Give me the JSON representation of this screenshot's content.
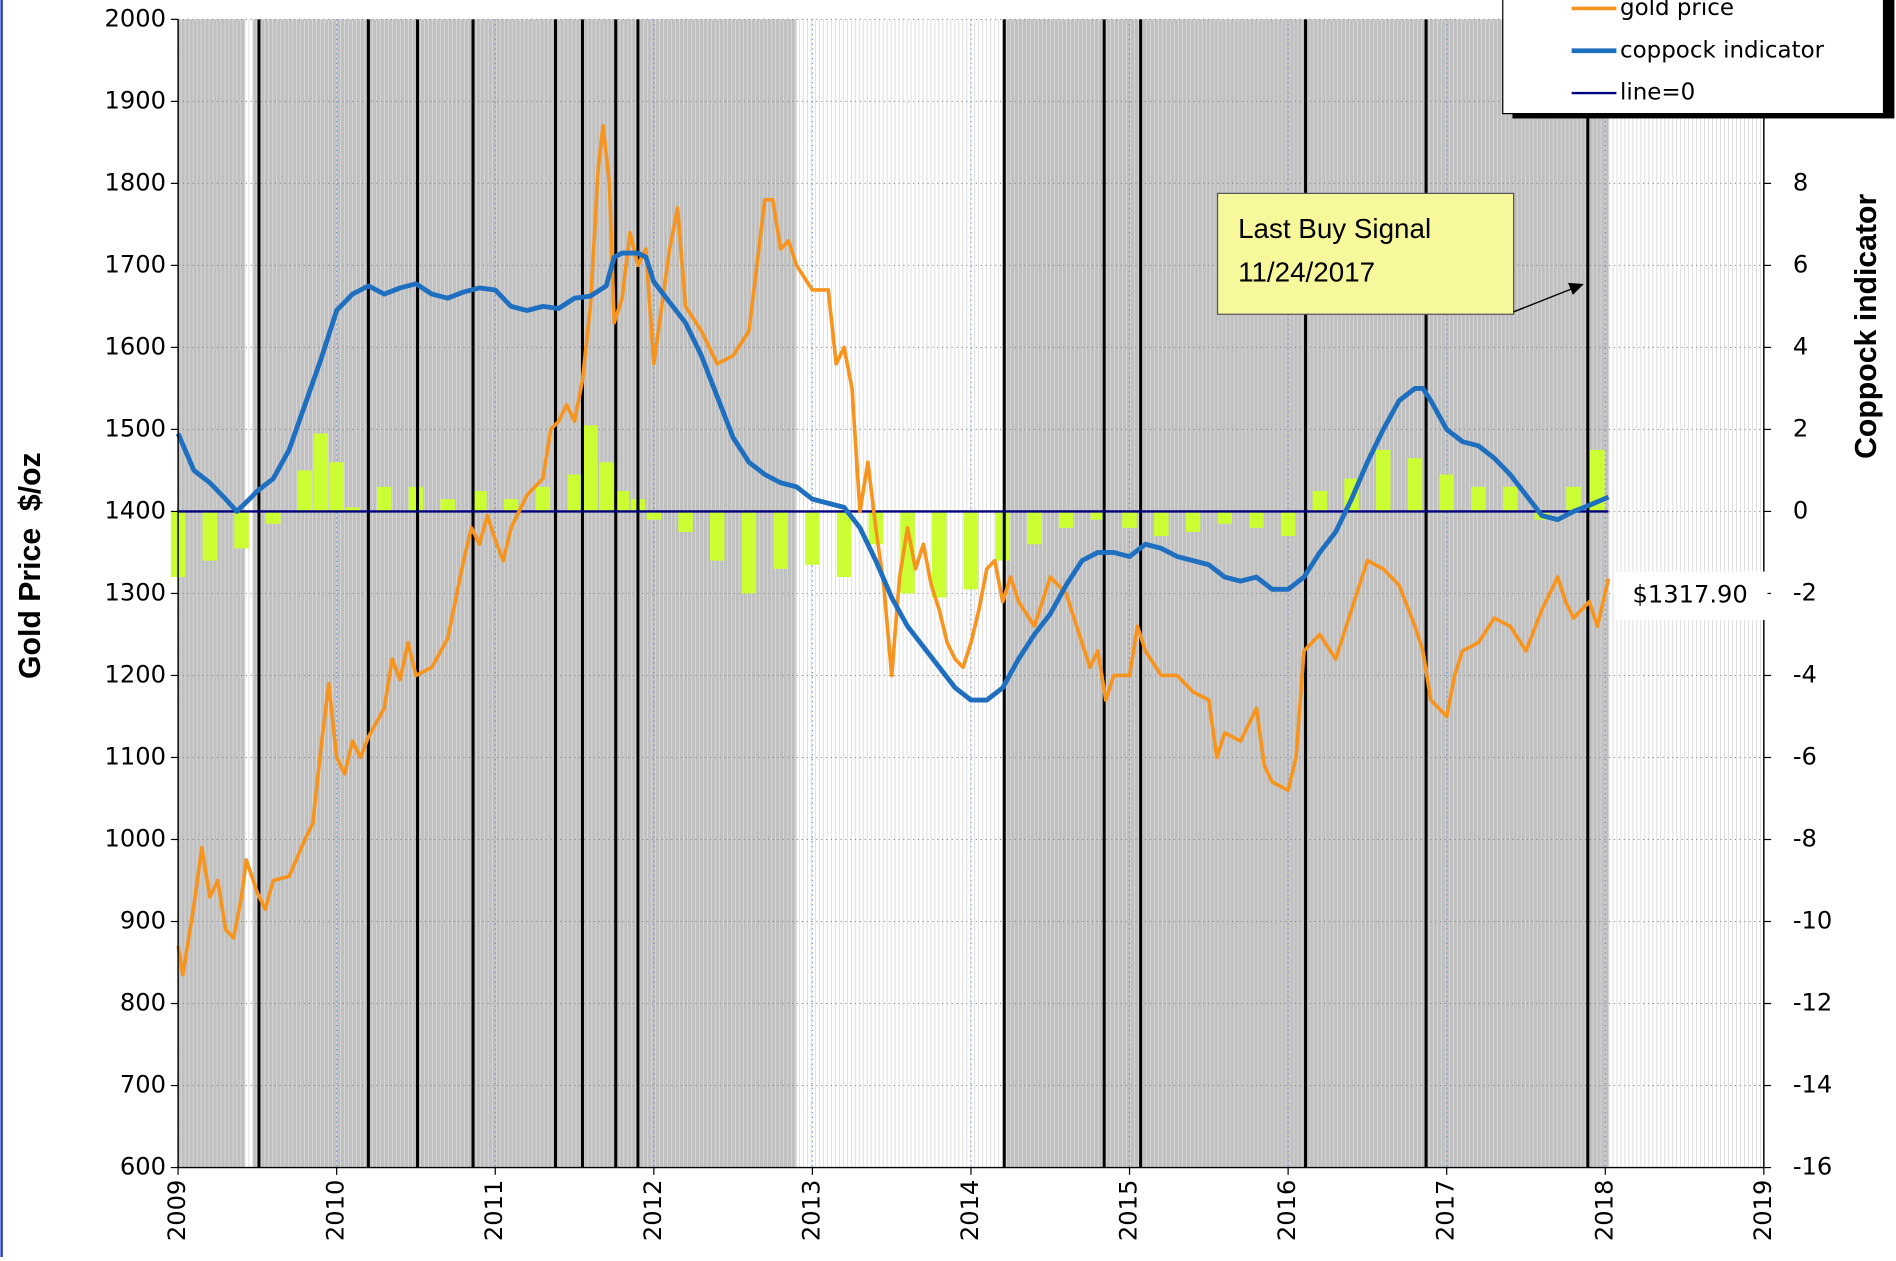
{
  "chart_data": {
    "type": "line",
    "y_title": "Gold Price  $/oz",
    "y2_title": "Coppock indicator",
    "xlim": [
      2009,
      2019
    ],
    "xticks": [
      2009,
      2010,
      2011,
      2012,
      2013,
      2014,
      2015,
      2016,
      2017,
      2018,
      2019
    ],
    "ylim": [
      600,
      2000
    ],
    "yticks": [
      600,
      700,
      800,
      900,
      1000,
      1100,
      1200,
      1300,
      1400,
      1500,
      1600,
      1700,
      1800,
      1900,
      2000
    ],
    "y2lim": [
      -16,
      12
    ],
    "y2ticks": [
      -16,
      -14,
      -12,
      -10,
      -8,
      -6,
      -4,
      -2,
      0,
      2,
      4,
      6,
      8
    ],
    "grid": true,
    "shade_color": "#c0c0c0",
    "shaded_periods": [
      [
        2009.0,
        2009.42
      ],
      [
        2009.47,
        2012.9
      ],
      [
        2014.22,
        2018.02
      ]
    ],
    "signal_lines": [
      2009.51,
      2010.2,
      2010.51,
      2010.86,
      2011.38,
      2011.55,
      2011.76,
      2011.9,
      2014.21,
      2014.84,
      2015.07,
      2016.11,
      2016.87,
      2017.89
    ],
    "signal_color": "#000000",
    "histogram": {
      "color": "#ccff33",
      "axis": "y2",
      "x": [
        2009.0,
        2009.2,
        2009.4,
        2009.6,
        2009.8,
        2009.9,
        2010.0,
        2010.1,
        2010.3,
        2010.5,
        2010.7,
        2010.9,
        2011.1,
        2011.3,
        2011.5,
        2011.6,
        2011.7,
        2011.8,
        2011.9,
        2012.0,
        2012.2,
        2012.4,
        2012.6,
        2012.8,
        2013.0,
        2013.2,
        2013.4,
        2013.6,
        2013.8,
        2014.0,
        2014.2,
        2014.4,
        2014.6,
        2014.8,
        2015.0,
        2015.2,
        2015.4,
        2015.6,
        2015.8,
        2016.0,
        2016.2,
        2016.4,
        2016.6,
        2016.8,
        2017.0,
        2017.2,
        2017.4,
        2017.6,
        2017.8,
        2017.95
      ],
      "values": [
        -1.6,
        -1.2,
        -0.9,
        -0.3,
        1.0,
        1.9,
        1.2,
        0.1,
        0.6,
        0.6,
        0.3,
        0.5,
        0.3,
        0.6,
        0.9,
        2.1,
        1.2,
        0.5,
        0.3,
        -0.2,
        -0.5,
        -1.2,
        -2.0,
        -1.4,
        -1.3,
        -1.6,
        -0.8,
        -2.0,
        -2.1,
        -1.9,
        -1.2,
        -0.8,
        -0.4,
        -0.2,
        -0.4,
        -0.6,
        -0.5,
        -0.3,
        -0.4,
        -0.6,
        0.5,
        0.8,
        1.5,
        1.3,
        0.9,
        0.6,
        0.6,
        -0.2,
        0.6,
        1.5
      ]
    },
    "series": [
      {
        "name": "gold price",
        "color": "#f7941d",
        "axis": "y",
        "x": [
          2009.0,
          2009.03,
          2009.1,
          2009.15,
          2009.2,
          2009.25,
          2009.3,
          2009.35,
          2009.4,
          2009.43,
          2009.5,
          2009.55,
          2009.6,
          2009.7,
          2009.8,
          2009.85,
          2009.9,
          2009.95,
          2010.0,
          2010.05,
          2010.1,
          2010.15,
          2010.2,
          2010.3,
          2010.35,
          2010.4,
          2010.45,
          2010.5,
          2010.6,
          2010.7,
          2010.8,
          2010.85,
          2010.9,
          2010.95,
          2011.0,
          2011.05,
          2011.1,
          2011.2,
          2011.3,
          2011.35,
          2011.4,
          2011.45,
          2011.5,
          2011.55,
          2011.6,
          2011.65,
          2011.68,
          2011.72,
          2011.75,
          2011.8,
          2011.85,
          2011.9,
          2011.95,
          2012.0,
          2012.05,
          2012.1,
          2012.15,
          2012.2,
          2012.3,
          2012.4,
          2012.5,
          2012.6,
          2012.7,
          2012.75,
          2012.8,
          2012.85,
          2012.9,
          2013.0,
          2013.1,
          2013.15,
          2013.2,
          2013.25,
          2013.3,
          2013.35,
          2013.4,
          2013.45,
          2013.5,
          2013.55,
          2013.6,
          2013.65,
          2013.7,
          2013.75,
          2013.8,
          2013.85,
          2013.9,
          2013.95,
          2014.0,
          2014.05,
          2014.1,
          2014.15,
          2014.2,
          2014.25,
          2014.3,
          2014.4,
          2014.5,
          2014.6,
          2014.7,
          2014.75,
          2014.8,
          2014.85,
          2014.9,
          2015.0,
          2015.05,
          2015.1,
          2015.2,
          2015.3,
          2015.4,
          2015.5,
          2015.55,
          2015.6,
          2015.7,
          2015.8,
          2015.85,
          2015.9,
          2016.0,
          2016.05,
          2016.1,
          2016.2,
          2016.3,
          2016.4,
          2016.5,
          2016.6,
          2016.7,
          2016.8,
          2016.85,
          2016.9,
          2017.0,
          2017.05,
          2017.1,
          2017.2,
          2017.3,
          2017.4,
          2017.5,
          2017.6,
          2017.7,
          2017.75,
          2017.8,
          2017.9,
          2017.95,
          2018.02
        ],
        "values": [
          870,
          835,
          920,
          990,
          930,
          950,
          890,
          880,
          930,
          975,
          935,
          915,
          950,
          955,
          1000,
          1020,
          1110,
          1190,
          1100,
          1080,
          1120,
          1100,
          1125,
          1160,
          1220,
          1195,
          1240,
          1200,
          1210,
          1245,
          1340,
          1380,
          1360,
          1395,
          1365,
          1340,
          1380,
          1420,
          1440,
          1500,
          1510,
          1530,
          1510,
          1560,
          1650,
          1820,
          1870,
          1800,
          1630,
          1660,
          1740,
          1700,
          1720,
          1580,
          1650,
          1720,
          1770,
          1650,
          1620,
          1580,
          1590,
          1620,
          1780,
          1780,
          1720,
          1730,
          1700,
          1670,
          1670,
          1580,
          1600,
          1550,
          1400,
          1460,
          1380,
          1310,
          1200,
          1320,
          1380,
          1330,
          1360,
          1310,
          1280,
          1240,
          1220,
          1210,
          1240,
          1280,
          1330,
          1340,
          1290,
          1320,
          1290,
          1260,
          1320,
          1300,
          1240,
          1210,
          1230,
          1170,
          1200,
          1200,
          1260,
          1230,
          1200,
          1200,
          1180,
          1170,
          1100,
          1130,
          1120,
          1160,
          1090,
          1070,
          1060,
          1100,
          1230,
          1250,
          1220,
          1280,
          1340,
          1330,
          1310,
          1260,
          1230,
          1170,
          1150,
          1200,
          1230,
          1240,
          1270,
          1260,
          1230,
          1280,
          1320,
          1290,
          1270,
          1290,
          1260,
          1317.9
        ]
      },
      {
        "name": "coppock indicator",
        "color": "#1f6fc0",
        "axis": "y2",
        "x": [
          2009.0,
          2009.1,
          2009.2,
          2009.3,
          2009.37,
          2009.45,
          2009.5,
          2009.6,
          2009.7,
          2009.8,
          2009.9,
          2010.0,
          2010.1,
          2010.2,
          2010.3,
          2010.4,
          2010.5,
          2010.6,
          2010.7,
          2010.8,
          2010.9,
          2011.0,
          2011.1,
          2011.2,
          2011.3,
          2011.4,
          2011.5,
          2011.6,
          2011.7,
          2011.75,
          2011.8,
          2011.9,
          2011.95,
          2012.0,
          2012.1,
          2012.2,
          2012.3,
          2012.4,
          2012.5,
          2012.6,
          2012.7,
          2012.8,
          2012.9,
          2013.0,
          2013.1,
          2013.2,
          2013.3,
          2013.4,
          2013.5,
          2013.6,
          2013.7,
          2013.8,
          2013.9,
          2014.0,
          2014.1,
          2014.2,
          2014.3,
          2014.4,
          2014.5,
          2014.6,
          2014.7,
          2014.8,
          2014.9,
          2015.0,
          2015.1,
          2015.2,
          2015.3,
          2015.4,
          2015.5,
          2015.6,
          2015.7,
          2015.8,
          2015.9,
          2016.0,
          2016.1,
          2016.2,
          2016.3,
          2016.4,
          2016.5,
          2016.6,
          2016.7,
          2016.8,
          2016.85,
          2016.9,
          2017.0,
          2017.1,
          2017.2,
          2017.3,
          2017.4,
          2017.5,
          2017.6,
          2017.7,
          2017.8,
          2017.9,
          2018.02
        ],
        "values": [
          1.9,
          1,
          0.7,
          0.3,
          0,
          0.3,
          0.5,
          0.8,
          1.5,
          2.6,
          3.7,
          4.9,
          5.3,
          5.5,
          5.3,
          5.45,
          5.55,
          5.3,
          5.2,
          5.35,
          5.45,
          5.4,
          5.0,
          4.9,
          5.0,
          4.95,
          5.2,
          5.25,
          5.5,
          6.2,
          6.3,
          6.3,
          6.2,
          5.6,
          5.1,
          4.6,
          3.8,
          2.8,
          1.8,
          1.2,
          0.9,
          0.7,
          0.6,
          0.3,
          0.2,
          0.1,
          -0.4,
          -1.2,
          -2.1,
          -2.8,
          -3.3,
          -3.8,
          -4.3,
          -4.6,
          -4.6,
          -4.3,
          -3.6,
          -3.0,
          -2.5,
          -1.8,
          -1.2,
          -1.0,
          -1.0,
          -1.1,
          -0.8,
          -0.9,
          -1.1,
          -1.2,
          -1.3,
          -1.6,
          -1.7,
          -1.6,
          -1.9,
          -1.9,
          -1.6,
          -1.0,
          -0.5,
          0.3,
          1.2,
          2.0,
          2.7,
          3.0,
          3.0,
          2.7,
          2.0,
          1.7,
          1.6,
          1.3,
          0.9,
          0.4,
          -0.1,
          -0.2,
          0,
          0.15,
          0.35
        ]
      },
      {
        "name": "line=0",
        "color": "#000080",
        "axis": "y2",
        "x": [
          2009.0,
          2018.02
        ],
        "values": [
          0,
          0
        ]
      }
    ],
    "price_label": "$1317.90",
    "annotation": {
      "lines": [
        "Last Buy Signal",
        "11/24/2017"
      ]
    }
  }
}
